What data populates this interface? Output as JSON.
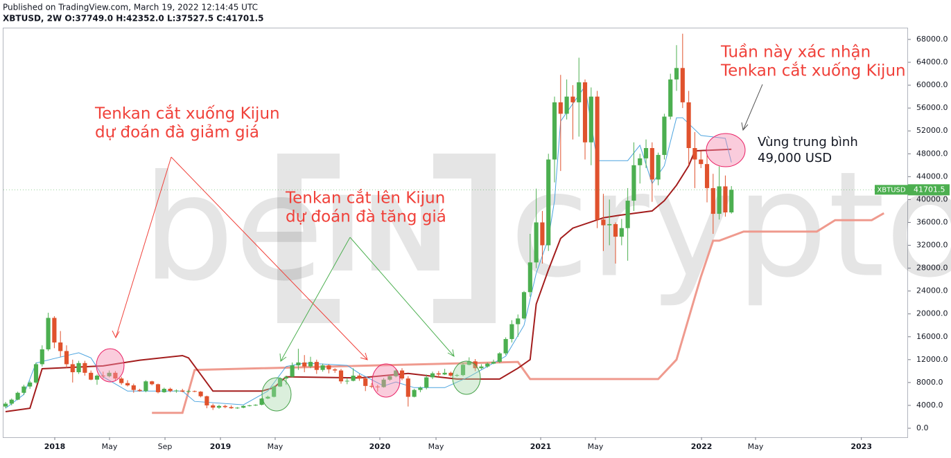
{
  "chart_data": {
    "type": "candlestick",
    "header": [
      "Published on TradingView.com, March 19, 2022 12:14:45 UTC",
      "XBTUSD, 2W O:37749.0 H:42352.0 L:37527.5 C:41701.5"
    ],
    "watermark": [
      "be",
      "IN",
      "crypto"
    ],
    "annotations": [
      [
        "Tenkan cắt xuống Kijun",
        "dự đoán đà giảm giá"
      ],
      [
        "Tenkan cắt lên Kijun",
        "dự đoán đà tăng giá"
      ],
      [
        "Tuần này xác nhận",
        "Tenkan cắt xuống Kijun"
      ],
      [
        "Vùng trung bình",
        "49,000 USD"
      ]
    ],
    "up_color": "#4caf50",
    "down_color": "#e0522d",
    "ohlc": [
      [
        3800,
        4600,
        3500,
        4300
      ],
      [
        4300,
        5200,
        4000,
        5000
      ],
      [
        5000,
        6400,
        4900,
        6200
      ],
      [
        6200,
        7600,
        5800,
        7300
      ],
      [
        7300,
        8300,
        6900,
        8000
      ],
      [
        8000,
        11500,
        7800,
        11200
      ],
      [
        11200,
        14500,
        10800,
        13800
      ],
      [
        13800,
        20200,
        13500,
        19300
      ],
      [
        19300,
        19600,
        14000,
        15000
      ],
      [
        15000,
        17000,
        12500,
        13500
      ],
      [
        13500,
        14500,
        10500,
        11200
      ],
      [
        11200,
        12000,
        8000,
        9800
      ],
      [
        9800,
        11800,
        9500,
        11400
      ],
      [
        11400,
        11800,
        9200,
        9700
      ],
      [
        9700,
        10100,
        8400,
        8500
      ],
      [
        8500,
        9400,
        7600,
        9200
      ],
      [
        9200,
        9900,
        8700,
        9100
      ],
      [
        9100,
        10100,
        8900,
        9700
      ],
      [
        9700,
        10000,
        8300,
        8700
      ],
      [
        8700,
        9000,
        7600,
        7900
      ],
      [
        7900,
        8400,
        7300,
        7500
      ],
      [
        7500,
        7800,
        6200,
        6700
      ],
      [
        6700,
        6900,
        6400,
        6500
      ],
      [
        6500,
        8400,
        6300,
        8200
      ],
      [
        8200,
        8300,
        7500,
        7700
      ],
      [
        7700,
        7800,
        6100,
        6300
      ],
      [
        6300,
        7100,
        6200,
        6900
      ],
      [
        6900,
        7100,
        6300,
        6500
      ],
      [
        6500,
        6800,
        6200,
        6600
      ],
      [
        6600,
        6900,
        6300,
        6400
      ],
      [
        6400,
        6700,
        6200,
        6500
      ],
      [
        6500,
        6600,
        6300,
        6400
      ],
      [
        6400,
        6500,
        5400,
        5600
      ],
      [
        5600,
        5700,
        3500,
        4000
      ],
      [
        4000,
        4300,
        3200,
        3600
      ],
      [
        3600,
        4100,
        3400,
        3900
      ],
      [
        3900,
        4100,
        3500,
        3700
      ],
      [
        3700,
        4000,
        3400,
        3500
      ],
      [
        3500,
        3700,
        3400,
        3600
      ],
      [
        3600,
        4000,
        3500,
        3900
      ],
      [
        3900,
        4100,
        3800,
        4000
      ],
      [
        4000,
        4200,
        3900,
        4100
      ],
      [
        4100,
        5300,
        4000,
        5200
      ],
      [
        5200,
        5700,
        5100,
        5500
      ],
      [
        5500,
        7500,
        5400,
        7300
      ],
      [
        7300,
        8900,
        7200,
        8700
      ],
      [
        8700,
        9200,
        7600,
        9000
      ],
      [
        9000,
        11500,
        8900,
        11000
      ],
      [
        11000,
        13900,
        10200,
        11500
      ],
      [
        11500,
        12800,
        9800,
        10800
      ],
      [
        10800,
        12500,
        10500,
        11600
      ],
      [
        11600,
        12000,
        9500,
        10200
      ],
      [
        10200,
        11300,
        9900,
        11000
      ],
      [
        11000,
        11200,
        9600,
        10300
      ],
      [
        10300,
        10500,
        9700,
        10100
      ],
      [
        10100,
        10400,
        7800,
        8200
      ],
      [
        8200,
        8800,
        7700,
        8300
      ],
      [
        8300,
        10500,
        8200,
        9200
      ],
      [
        9200,
        9500,
        8300,
        8700
      ],
      [
        8700,
        8900,
        6500,
        7400
      ],
      [
        7400,
        7900,
        7000,
        7300
      ],
      [
        7300,
        7600,
        6400,
        7200
      ],
      [
        7200,
        8800,
        7100,
        8500
      ],
      [
        8500,
        9300,
        8300,
        9100
      ],
      [
        9100,
        10300,
        8900,
        10100
      ],
      [
        10100,
        10500,
        8400,
        8700
      ],
      [
        8700,
        9100,
        3800,
        5500
      ],
      [
        5500,
        6900,
        5400,
        6700
      ],
      [
        6700,
        7300,
        6300,
        7100
      ],
      [
        7100,
        9400,
        6800,
        8900
      ],
      [
        8900,
        9900,
        8600,
        9600
      ],
      [
        9600,
        10000,
        8800,
        9400
      ],
      [
        9400,
        10400,
        9300,
        9700
      ],
      [
        9700,
        9900,
        9000,
        9200
      ],
      [
        9200,
        9500,
        9000,
        9300
      ],
      [
        9300,
        11400,
        9100,
        11100
      ],
      [
        11100,
        12400,
        11000,
        11700
      ],
      [
        11700,
        12100,
        10000,
        10500
      ],
      [
        10500,
        11200,
        10300,
        10800
      ],
      [
        10800,
        11500,
        10600,
        11300
      ],
      [
        11300,
        12000,
        11200,
        11600
      ],
      [
        11600,
        13300,
        11400,
        13100
      ],
      [
        13100,
        15900,
        12800,
        15600
      ],
      [
        15600,
        18900,
        15000,
        18200
      ],
      [
        18200,
        19900,
        16000,
        19200
      ],
      [
        19200,
        24000,
        19000,
        23800
      ],
      [
        23800,
        34000,
        23000,
        29000
      ],
      [
        29000,
        41900,
        28000,
        36000
      ],
      [
        36000,
        38000,
        28800,
        32000
      ],
      [
        32000,
        48000,
        31000,
        47000
      ],
      [
        47000,
        58000,
        43000,
        57000
      ],
      [
        57000,
        61800,
        45000,
        55000
      ],
      [
        55000,
        61000,
        54000,
        58000
      ],
      [
        58000,
        60000,
        50500,
        57000
      ],
      [
        57000,
        64800,
        51000,
        60500
      ],
      [
        60500,
        61000,
        47000,
        50000
      ],
      [
        50000,
        59600,
        46000,
        58000
      ],
      [
        58000,
        59000,
        35000,
        36500
      ],
      [
        36500,
        41000,
        31000,
        35500
      ],
      [
        35500,
        40000,
        32000,
        35700
      ],
      [
        35700,
        36000,
        28800,
        33500
      ],
      [
        33500,
        36600,
        32000,
        35000
      ],
      [
        35000,
        42000,
        29300,
        39800
      ],
      [
        39800,
        50000,
        38000,
        46000
      ],
      [
        46000,
        48000,
        42800,
        47200
      ],
      [
        47200,
        50500,
        45500,
        49000
      ],
      [
        49000,
        50000,
        39600,
        43500
      ],
      [
        43500,
        48200,
        42500,
        47800
      ],
      [
        47800,
        55000,
        47000,
        54500
      ],
      [
        54500,
        62000,
        54000,
        61000
      ],
      [
        61000,
        67000,
        59000,
        63000
      ],
      [
        63000,
        69000,
        56000,
        57000
      ],
      [
        57000,
        59000,
        46000,
        49000
      ],
      [
        49000,
        51800,
        42000,
        47000
      ],
      [
        47000,
        48500,
        45500,
        46200
      ],
      [
        46200,
        48000,
        39500,
        42000
      ],
      [
        42000,
        44500,
        34000,
        37500
      ],
      [
        37500,
        45800,
        36500,
        42300
      ],
      [
        42300,
        44200,
        37000,
        37749
      ],
      [
        37749,
        42352,
        37527.5,
        41701.5
      ]
    ],
    "series": [
      {
        "name": "Senkou B",
        "color": "#ef9a8e",
        "width": 3,
        "x": [
          24,
          29,
          31,
          84,
          86,
          107,
          110,
          113,
          114,
          116,
          117,
          121,
          133,
          136,
          142,
          144
        ],
        "values": [
          2700,
          2700,
          10200,
          11600,
          8600,
          8600,
          12000,
          22900,
          26500,
          32800,
          32800,
          34400,
          34400,
          36400,
          36400,
          37600
        ]
      },
      {
        "name": "Kijun",
        "color": "#a31c1c",
        "width": 2,
        "x": [
          0,
          4,
          6,
          16,
          22,
          29,
          30,
          34,
          42,
          44,
          46,
          58,
          66,
          74,
          81,
          84,
          86,
          87,
          89,
          91,
          93,
          98,
          101,
          106,
          108,
          110,
          112,
          113,
          119
        ],
        "values": [
          2900,
          3500,
          10400,
          10900,
          11900,
          12700,
          12300,
          6500,
          6500,
          7100,
          9000,
          8800,
          9600,
          8600,
          8600,
          10500,
          12000,
          21700,
          27700,
          33200,
          35000,
          36800,
          37300,
          38000,
          39800,
          42500,
          45900,
          48500,
          48800
        ]
      },
      {
        "name": "Tenkan",
        "color": "#4aa3df",
        "width": 1,
        "x": [
          0,
          3,
          5,
          8,
          12,
          14,
          16,
          20,
          29,
          31,
          39,
          43,
          46,
          49,
          56,
          58,
          62,
          64,
          67,
          72,
          76,
          79,
          82,
          85,
          87,
          89,
          90,
          91,
          95,
          97,
          102,
          104,
          106,
          108,
          110,
          111,
          114,
          118,
          119
        ],
        "values": [
          3500,
          5900,
          11400,
          12200,
          13200,
          12300,
          9000,
          6500,
          6500,
          4700,
          4100,
          6500,
          10800,
          11400,
          11000,
          9600,
          7400,
          8100,
          7100,
          7100,
          9000,
          10800,
          12600,
          18000,
          27100,
          33200,
          39800,
          53700,
          59800,
          46800,
          46800,
          49500,
          42800,
          45900,
          54300,
          54300,
          51200,
          50700,
          46500
        ]
      }
    ],
    "xlim": [
      -0.34,
      147.95
    ],
    "xticks": [
      {
        "value": 8.07,
        "label": "2018"
      },
      {
        "value": 17.05,
        "label": "May"
      },
      {
        "value": 26.14,
        "label": "Sep"
      },
      {
        "value": 35.23,
        "label": "2019"
      },
      {
        "value": 44.2,
        "label": "May"
      },
      {
        "value": 61.36,
        "label": "2020"
      },
      {
        "value": 70.57,
        "label": "May"
      },
      {
        "value": 87.73,
        "label": "2021"
      },
      {
        "value": 96.7,
        "label": "May"
      },
      {
        "value": 114.1,
        "label": "2022"
      },
      {
        "value": 122.95,
        "label": "May"
      },
      {
        "value": 140.3,
        "label": "2023"
      }
    ],
    "ylim": [
      -1573,
      70054
    ],
    "yticks": [
      {
        "value": 0,
        "label": "0.0"
      },
      {
        "value": 4000,
        "label": "4000.0"
      },
      {
        "value": 8000,
        "label": "8000.0"
      },
      {
        "value": 12000,
        "label": "12000.0"
      },
      {
        "value": 16000,
        "label": "16000.0"
      },
      {
        "value": 20000,
        "label": "20000.0"
      },
      {
        "value": 24000,
        "label": "24000.0"
      },
      {
        "value": 28000,
        "label": "28000.0"
      },
      {
        "value": 32000,
        "label": "32000.0"
      },
      {
        "value": 36000,
        "label": "36000.0"
      },
      {
        "value": 40000,
        "label": "40000.0"
      },
      {
        "value": 44000,
        "label": "44000.0"
      },
      {
        "value": 48000,
        "label": "48000.0"
      },
      {
        "value": 52000,
        "label": "52000.0"
      },
      {
        "value": 56000,
        "label": "56000.0"
      },
      {
        "value": 60000,
        "label": "60000.0"
      },
      {
        "value": 64000,
        "label": "64000.0"
      },
      {
        "value": 68000,
        "label": "68000.0"
      }
    ],
    "price_tag": {
      "label": "XBTUSD",
      "value": 41701.5
    }
  }
}
